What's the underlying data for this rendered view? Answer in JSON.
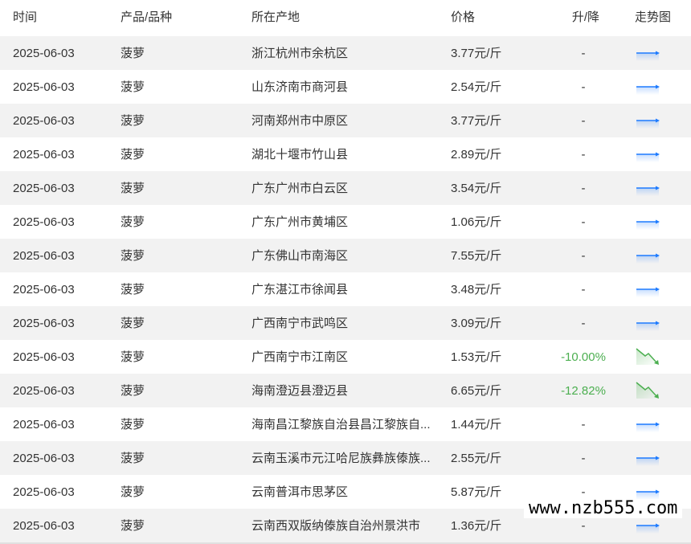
{
  "headers": {
    "time": "时间",
    "product": "产品/品种",
    "location": "所在产地",
    "price": "价格",
    "change": "升/降",
    "trend": "走势图"
  },
  "colors": {
    "flat_arrow": "#1e7bff",
    "down_arrow": "#4caf50",
    "row_alt": "#f2f2f2"
  },
  "rows": [
    {
      "time": "2025-06-03",
      "product": "菠萝",
      "location": "浙江杭州市余杭区",
      "price": "3.77元/斤",
      "change": "-",
      "trend": "flat"
    },
    {
      "time": "2025-06-03",
      "product": "菠萝",
      "location": "山东济南市商河县",
      "price": "2.54元/斤",
      "change": "-",
      "trend": "flat"
    },
    {
      "time": "2025-06-03",
      "product": "菠萝",
      "location": "河南郑州市中原区",
      "price": "3.77元/斤",
      "change": "-",
      "trend": "flat"
    },
    {
      "time": "2025-06-03",
      "product": "菠萝",
      "location": "湖北十堰市竹山县",
      "price": "2.89元/斤",
      "change": "-",
      "trend": "flat"
    },
    {
      "time": "2025-06-03",
      "product": "菠萝",
      "location": "广东广州市白云区",
      "price": "3.54元/斤",
      "change": "-",
      "trend": "flat"
    },
    {
      "time": "2025-06-03",
      "product": "菠萝",
      "location": "广东广州市黄埔区",
      "price": "1.06元/斤",
      "change": "-",
      "trend": "flat"
    },
    {
      "time": "2025-06-03",
      "product": "菠萝",
      "location": "广东佛山市南海区",
      "price": "7.55元/斤",
      "change": "-",
      "trend": "flat"
    },
    {
      "time": "2025-06-03",
      "product": "菠萝",
      "location": "广东湛江市徐闻县",
      "price": "3.48元/斤",
      "change": "-",
      "trend": "flat"
    },
    {
      "time": "2025-06-03",
      "product": "菠萝",
      "location": "广西南宁市武鸣区",
      "price": "3.09元/斤",
      "change": "-",
      "trend": "flat"
    },
    {
      "time": "2025-06-03",
      "product": "菠萝",
      "location": "广西南宁市江南区",
      "price": "1.53元/斤",
      "change": "-10.00%",
      "trend": "down"
    },
    {
      "time": "2025-06-03",
      "product": "菠萝",
      "location": "海南澄迈县澄迈县",
      "price": "6.65元/斤",
      "change": "-12.82%",
      "trend": "down"
    },
    {
      "time": "2025-06-03",
      "product": "菠萝",
      "location": "海南昌江黎族自治县昌江黎族自...",
      "price": "1.44元/斤",
      "change": "-",
      "trend": "flat"
    },
    {
      "time": "2025-06-03",
      "product": "菠萝",
      "location": "云南玉溪市元江哈尼族彝族傣族...",
      "price": "2.55元/斤",
      "change": "-",
      "trend": "flat"
    },
    {
      "time": "2025-06-03",
      "product": "菠萝",
      "location": "云南普洱市思茅区",
      "price": "5.87元/斤",
      "change": "-",
      "trend": "flat"
    },
    {
      "time": "2025-06-03",
      "product": "菠萝",
      "location": "云南西双版纳傣族自治州景洪市",
      "price": "1.36元/斤",
      "change": "-",
      "trend": "flat"
    }
  ],
  "watermark": "www.nzb555.com"
}
